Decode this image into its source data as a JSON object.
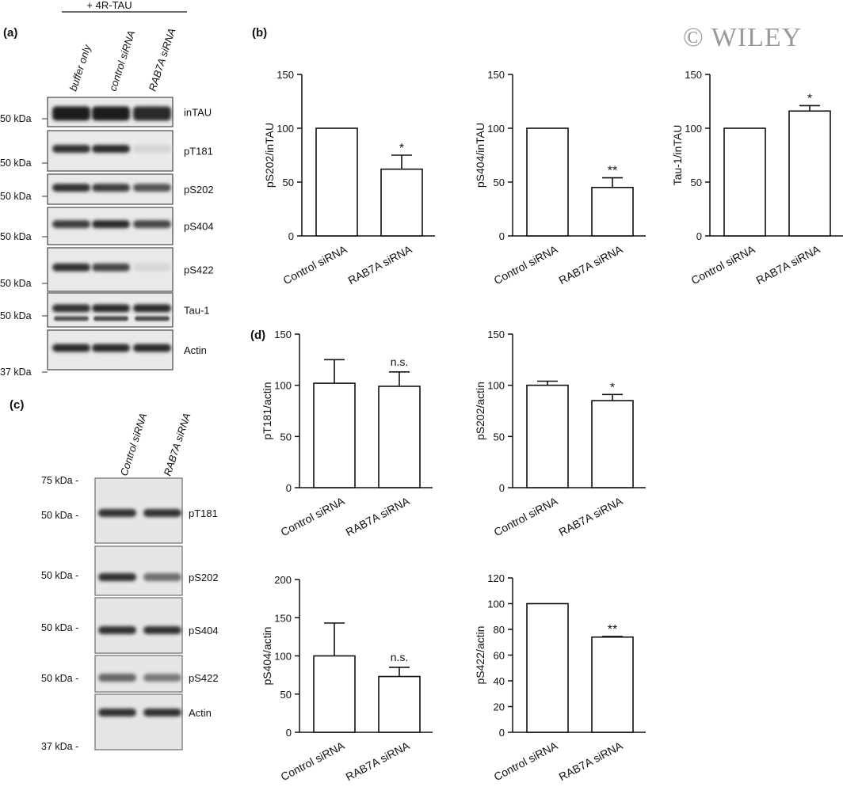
{
  "figure": {
    "treatment_header": "+ 4R-TAU",
    "watermark": "© WILEY"
  },
  "panel_a": {
    "label": "(a)",
    "lanes": [
      "buffer only",
      "control siRNA",
      "RAB7A siRNA"
    ],
    "blots": [
      {
        "name": "inTAU",
        "kda": "50 kDa",
        "bands": [
          0.95,
          0.95,
          0.9
        ]
      },
      {
        "name": "pT181",
        "kda": "50 kDa",
        "bands": [
          0.85,
          0.9,
          0.06
        ]
      },
      {
        "name": "pS202",
        "kda": "50 kDa",
        "bands": [
          0.85,
          0.8,
          0.7
        ]
      },
      {
        "name": "pS404",
        "kda": "50 kDa",
        "bands": [
          0.8,
          0.9,
          0.75
        ]
      },
      {
        "name": "pS422",
        "kda": "50 kDa",
        "bands": [
          0.85,
          0.75,
          0.05
        ]
      },
      {
        "name": "Tau-1",
        "kda": "50 kDa",
        "bands": [
          0.85,
          0.9,
          0.9
        ]
      },
      {
        "name": "Actin",
        "kda": "37 kDa",
        "bands": [
          0.9,
          0.9,
          0.9
        ]
      }
    ]
  },
  "panel_b": {
    "label": "(b)"
  },
  "panel_c": {
    "label": "(c)",
    "lanes": [
      "Control siRNA",
      "RAB7A siRNA"
    ],
    "markers": {
      "top": "75 kDa -",
      "bottom": "37 kDa -"
    },
    "blots": [
      {
        "name": "pT181",
        "kda": "50 kDa -",
        "bands": [
          0.85,
          0.85
        ]
      },
      {
        "name": "pS202",
        "kda": "50 kDa -",
        "bands": [
          0.85,
          0.55
        ]
      },
      {
        "name": "pS404",
        "kda": "50 kDa -",
        "bands": [
          0.85,
          0.85
        ]
      },
      {
        "name": "pS422",
        "kda": "50 kDa -",
        "bands": [
          0.6,
          0.5
        ]
      },
      {
        "name": "Actin",
        "kda": "",
        "bands": [
          0.85,
          0.85
        ]
      }
    ]
  },
  "panel_d": {
    "label": "(d)"
  },
  "chart_data": [
    {
      "type": "bar",
      "panel": "b",
      "categories": [
        "Control siRNA",
        "RAB7A siRNA"
      ],
      "values": [
        100,
        62
      ],
      "errors": [
        0,
        13
      ],
      "annotations": [
        "",
        "*"
      ],
      "ylabel": "pS202/inTAU",
      "ylim": [
        0,
        150
      ],
      "yticks": [
        0,
        50,
        100,
        150
      ]
    },
    {
      "type": "bar",
      "panel": "b",
      "categories": [
        "Control siRNA",
        "RAB7A siRNA"
      ],
      "values": [
        100,
        45
      ],
      "errors": [
        0,
        9
      ],
      "annotations": [
        "",
        "**"
      ],
      "ylabel": "pS404/inTAU",
      "ylim": [
        0,
        150
      ],
      "yticks": [
        0,
        50,
        100,
        150
      ]
    },
    {
      "type": "bar",
      "panel": "b",
      "categories": [
        "Control siRNA",
        "RAB7A siRNA"
      ],
      "values": [
        100,
        116
      ],
      "errors": [
        0,
        5
      ],
      "annotations": [
        "",
        "*"
      ],
      "ylabel": "Tau-1/inTAU",
      "ylim": [
        0,
        150
      ],
      "yticks": [
        0,
        50,
        100,
        150
      ]
    },
    {
      "type": "bar",
      "panel": "d",
      "categories": [
        "Control siRNA",
        "RAB7A siRNA"
      ],
      "values": [
        102,
        99
      ],
      "errors": [
        23,
        14
      ],
      "annotations": [
        "",
        "n.s."
      ],
      "ylabel": "pT181/actin",
      "ylim": [
        0,
        150
      ],
      "yticks": [
        0,
        50,
        100,
        150
      ]
    },
    {
      "type": "bar",
      "panel": "d",
      "categories": [
        "Control siRNA",
        "RAB7A siRNA"
      ],
      "values": [
        100,
        85
      ],
      "errors": [
        4,
        6
      ],
      "annotations": [
        "",
        "*"
      ],
      "ylabel": "pS202/actin",
      "ylim": [
        0,
        150
      ],
      "yticks": [
        0,
        50,
        100,
        150
      ]
    },
    {
      "type": "bar",
      "panel": "d",
      "categories": [
        "Control siRNA",
        "RAB7A siRNA"
      ],
      "values": [
        100,
        73
      ],
      "errors": [
        43,
        12
      ],
      "annotations": [
        "",
        "n.s."
      ],
      "ylabel": "pS404/actin",
      "ylim": [
        0,
        200
      ],
      "yticks": [
        0,
        50,
        100,
        150,
        200
      ]
    },
    {
      "type": "bar",
      "panel": "d",
      "categories": [
        "Control siRNA",
        "RAB7A siRNA"
      ],
      "values": [
        100,
        74
      ],
      "errors": [
        0,
        0.5
      ],
      "annotations": [
        "",
        "**"
      ],
      "ylabel": "pS422/actin",
      "ylim": [
        0,
        120
      ],
      "yticks": [
        0,
        20,
        40,
        60,
        80,
        100,
        120
      ]
    }
  ]
}
